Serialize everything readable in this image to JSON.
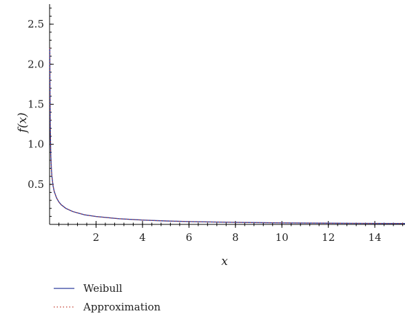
{
  "chart_data": {
    "type": "line",
    "title": "",
    "xlabel": "x",
    "ylabel": "f(x)",
    "xlim": [
      0,
      15.3
    ],
    "ylim": [
      0,
      2.75
    ],
    "x_ticks": [
      2,
      4,
      6,
      8,
      10,
      12,
      14
    ],
    "x_tick_labels": [
      "2",
      "4",
      "6",
      "8",
      "10",
      "12",
      "14"
    ],
    "y_ticks": [
      0.5,
      1.0,
      1.5,
      2.0,
      2.5
    ],
    "y_tick_labels": [
      "0.5",
      "1.0",
      "1.5",
      "2.0",
      "2.5"
    ],
    "grid": false,
    "legend_position": "bottom-left, below plot",
    "series": [
      {
        "name": "Weibull",
        "color": "#2e3f9e",
        "style": "solid",
        "x": [
          0.01,
          0.02,
          0.03,
          0.05,
          0.08,
          0.1,
          0.15,
          0.2,
          0.3,
          0.4,
          0.5,
          0.7,
          1.0,
          1.5,
          2.0,
          3.0,
          4.0,
          5.0,
          6.0,
          8.0,
          10.0,
          12.0,
          14.0,
          15.3
        ],
        "y": [
          2.2,
          1.62,
          1.2,
          0.88,
          0.68,
          0.6,
          0.48,
          0.41,
          0.33,
          0.28,
          0.245,
          0.2,
          0.16,
          0.12,
          0.098,
          0.07,
          0.054,
          0.043,
          0.035,
          0.025,
          0.019,
          0.015,
          0.012,
          0.011
        ]
      },
      {
        "name": "Approximation",
        "color": "#c0392b",
        "style": "dotted",
        "x": [
          0.01,
          0.02,
          0.03,
          0.05,
          0.08,
          0.1,
          0.15,
          0.2,
          0.3,
          0.4,
          0.5,
          0.7,
          1.0,
          1.5,
          2.0,
          3.0,
          4.0,
          5.0,
          6.0,
          8.0,
          10.0,
          12.0,
          14.0,
          15.3
        ],
        "y": [
          2.2,
          1.62,
          1.2,
          0.88,
          0.68,
          0.6,
          0.48,
          0.41,
          0.33,
          0.28,
          0.245,
          0.2,
          0.16,
          0.12,
          0.098,
          0.07,
          0.054,
          0.043,
          0.035,
          0.025,
          0.019,
          0.015,
          0.012,
          0.011
        ]
      }
    ]
  }
}
